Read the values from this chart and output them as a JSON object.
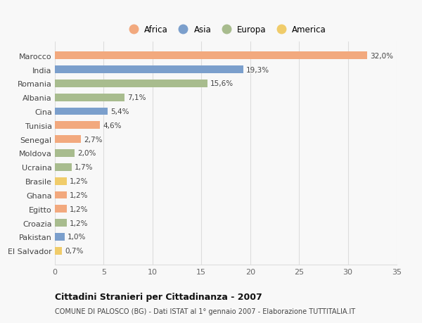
{
  "countries": [
    "Marocco",
    "India",
    "Romania",
    "Albania",
    "Cina",
    "Tunisia",
    "Senegal",
    "Moldova",
    "Ucraina",
    "Brasile",
    "Ghana",
    "Egitto",
    "Croazia",
    "Pakistan",
    "El Salvador"
  ],
  "values": [
    32.0,
    19.3,
    15.6,
    7.1,
    5.4,
    4.6,
    2.7,
    2.0,
    1.7,
    1.2,
    1.2,
    1.2,
    1.2,
    1.0,
    0.7
  ],
  "labels": [
    "32,0%",
    "19,3%",
    "15,6%",
    "7,1%",
    "5,4%",
    "4,6%",
    "2,7%",
    "2,0%",
    "1,7%",
    "1,2%",
    "1,2%",
    "1,2%",
    "1,2%",
    "1,0%",
    "0,7%"
  ],
  "continents": [
    "Africa",
    "Asia",
    "Europa",
    "Europa",
    "Asia",
    "Africa",
    "Africa",
    "Europa",
    "Europa",
    "America",
    "Africa",
    "Africa",
    "Europa",
    "Asia",
    "America"
  ],
  "colors": {
    "Africa": "#F2A97E",
    "Asia": "#7B9FCC",
    "Europa": "#A8BC8E",
    "America": "#F0CC6A"
  },
  "legend_order": [
    "Africa",
    "Asia",
    "Europa",
    "America"
  ],
  "xlim": [
    0,
    35
  ],
  "xticks": [
    0,
    5,
    10,
    15,
    20,
    25,
    30,
    35
  ],
  "title": "Cittadini Stranieri per Cittadinanza - 2007",
  "subtitle": "COMUNE DI PALOSCO (BG) - Dati ISTAT al 1° gennaio 2007 - Elaborazione TUTTITALIA.IT",
  "bg_color": "#f8f8f8",
  "bar_height": 0.55,
  "grid_color": "#dddddd"
}
